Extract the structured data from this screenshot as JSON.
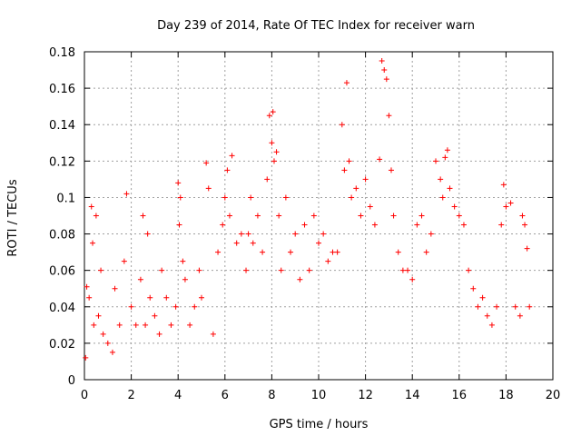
{
  "chart_data": {
    "type": "scatter",
    "title": "Day 239 of 2014, Rate Of TEC Index for receiver warn",
    "xlabel": "GPS time / hours",
    "ylabel": "ROTI / TECUs",
    "xlim": [
      0,
      20
    ],
    "ylim": [
      0,
      0.18
    ],
    "grid": true,
    "marker": "+",
    "color": "#ff0000",
    "x_tick_labels": [
      "0",
      "2",
      "4",
      "6",
      "8",
      "10",
      "12",
      "14",
      "16",
      "18",
      "20"
    ],
    "y_tick_labels": [
      "0",
      "0.02",
      "0.04",
      "0.06",
      "0.08",
      "0.1",
      "0.12",
      "0.14",
      "0.16",
      "0.18"
    ],
    "series": [
      {
        "name": "ROTI",
        "x": [
          0.05,
          0.1,
          0.2,
          0.3,
          0.35,
          0.4,
          0.5,
          0.6,
          0.7,
          0.8,
          1.0,
          1.2,
          1.3,
          1.5,
          1.7,
          1.8,
          2.0,
          2.2,
          2.4,
          2.5,
          2.6,
          2.7,
          2.8,
          3.0,
          3.2,
          3.3,
          3.5,
          3.7,
          3.9,
          4.0,
          4.05,
          4.1,
          4.2,
          4.3,
          4.5,
          4.7,
          4.9,
          5.0,
          5.2,
          5.3,
          5.5,
          5.7,
          5.9,
          6.0,
          6.1,
          6.2,
          6.3,
          6.5,
          6.7,
          6.9,
          7.0,
          7.1,
          7.2,
          7.4,
          7.6,
          7.8,
          7.9,
          8.0,
          8.05,
          8.1,
          8.2,
          8.3,
          8.4,
          8.6,
          8.8,
          9.0,
          9.2,
          9.4,
          9.6,
          9.8,
          10.0,
          10.2,
          10.4,
          10.6,
          10.8,
          11.0,
          11.1,
          11.2,
          11.3,
          11.4,
          11.6,
          11.8,
          12.0,
          12.2,
          12.4,
          12.6,
          12.7,
          12.8,
          12.9,
          13.0,
          13.1,
          13.2,
          13.4,
          13.6,
          13.8,
          14.0,
          14.2,
          14.4,
          14.6,
          14.8,
          15.0,
          15.2,
          15.3,
          15.4,
          15.5,
          15.6,
          15.8,
          16.0,
          16.2,
          16.4,
          16.6,
          16.8,
          17.0,
          17.2,
          17.4,
          17.6,
          17.8,
          17.9,
          18.0,
          18.2,
          18.4,
          18.6,
          18.7,
          18.8,
          18.9,
          19.0
        ],
        "y": [
          0.012,
          0.051,
          0.045,
          0.095,
          0.075,
          0.03,
          0.09,
          0.035,
          0.06,
          0.025,
          0.02,
          0.015,
          0.05,
          0.03,
          0.065,
          0.102,
          0.04,
          0.03,
          0.055,
          0.09,
          0.03,
          0.08,
          0.045,
          0.035,
          0.025,
          0.06,
          0.045,
          0.03,
          0.04,
          0.108,
          0.085,
          0.1,
          0.065,
          0.055,
          0.03,
          0.04,
          0.06,
          0.045,
          0.119,
          0.105,
          0.025,
          0.07,
          0.085,
          0.1,
          0.115,
          0.09,
          0.123,
          0.075,
          0.08,
          0.06,
          0.08,
          0.1,
          0.075,
          0.09,
          0.07,
          0.11,
          0.145,
          0.13,
          0.147,
          0.12,
          0.125,
          0.09,
          0.06,
          0.1,
          0.07,
          0.08,
          0.055,
          0.085,
          0.06,
          0.09,
          0.075,
          0.08,
          0.065,
          0.07,
          0.07,
          0.14,
          0.115,
          0.163,
          0.12,
          0.1,
          0.105,
          0.09,
          0.11,
          0.095,
          0.085,
          0.121,
          0.175,
          0.17,
          0.165,
          0.145,
          0.115,
          0.09,
          0.07,
          0.06,
          0.06,
          0.055,
          0.085,
          0.09,
          0.07,
          0.08,
          0.12,
          0.11,
          0.1,
          0.122,
          0.126,
          0.105,
          0.095,
          0.09,
          0.085,
          0.06,
          0.05,
          0.04,
          0.045,
          0.035,
          0.03,
          0.04,
          0.085,
          0.107,
          0.095,
          0.097,
          0.04,
          0.035,
          0.09,
          0.085,
          0.072,
          0.04
        ]
      }
    ]
  }
}
